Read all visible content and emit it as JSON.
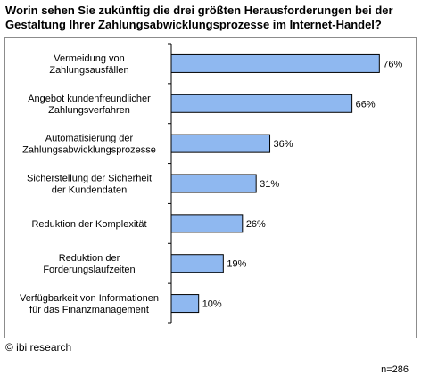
{
  "title_line1": "Worin sehen Sie zukünftig die drei größten Herausforderungen bei der",
  "title_line2": "Gestaltung Ihrer Zahlungsabwicklungsprozesse im Internet-Handel?",
  "n_label": "n=286",
  "copyright": "© ibi research",
  "colors": {
    "bar_fill": "#8fb8f0",
    "bar_stroke": "#000000",
    "axis": "#000000"
  },
  "chart_data": {
    "type": "bar",
    "orientation": "horizontal",
    "title": "Worin sehen Sie zukünftig die drei größten Herausforderungen bei der Gestaltung Ihrer Zahlungsabwicklungsprozesse im Internet-Handel?",
    "categories": [
      [
        "Vermeidung von",
        "Zahlungsausfällen"
      ],
      [
        "Angebot kundenfreundlicher",
        "Zahlungsverfahren"
      ],
      [
        "Automatisierung der",
        "Zahlungsabwicklungsprozesse"
      ],
      [
        "Sicherstellung der Sicherheit",
        "der Kundendaten"
      ],
      [
        "Reduktion der Komplexität"
      ],
      [
        "Reduktion der",
        "Forderungslaufzeiten"
      ],
      [
        "Verfügbarkeit von Informationen",
        "für das Finanzmanagement"
      ]
    ],
    "values": [
      76,
      66,
      36,
      31,
      26,
      19,
      10
    ],
    "value_labels": [
      "76%",
      "66%",
      "36%",
      "31%",
      "26%",
      "19%",
      "10%"
    ],
    "xlim": [
      0,
      100
    ],
    "grid": false,
    "legend": false
  }
}
